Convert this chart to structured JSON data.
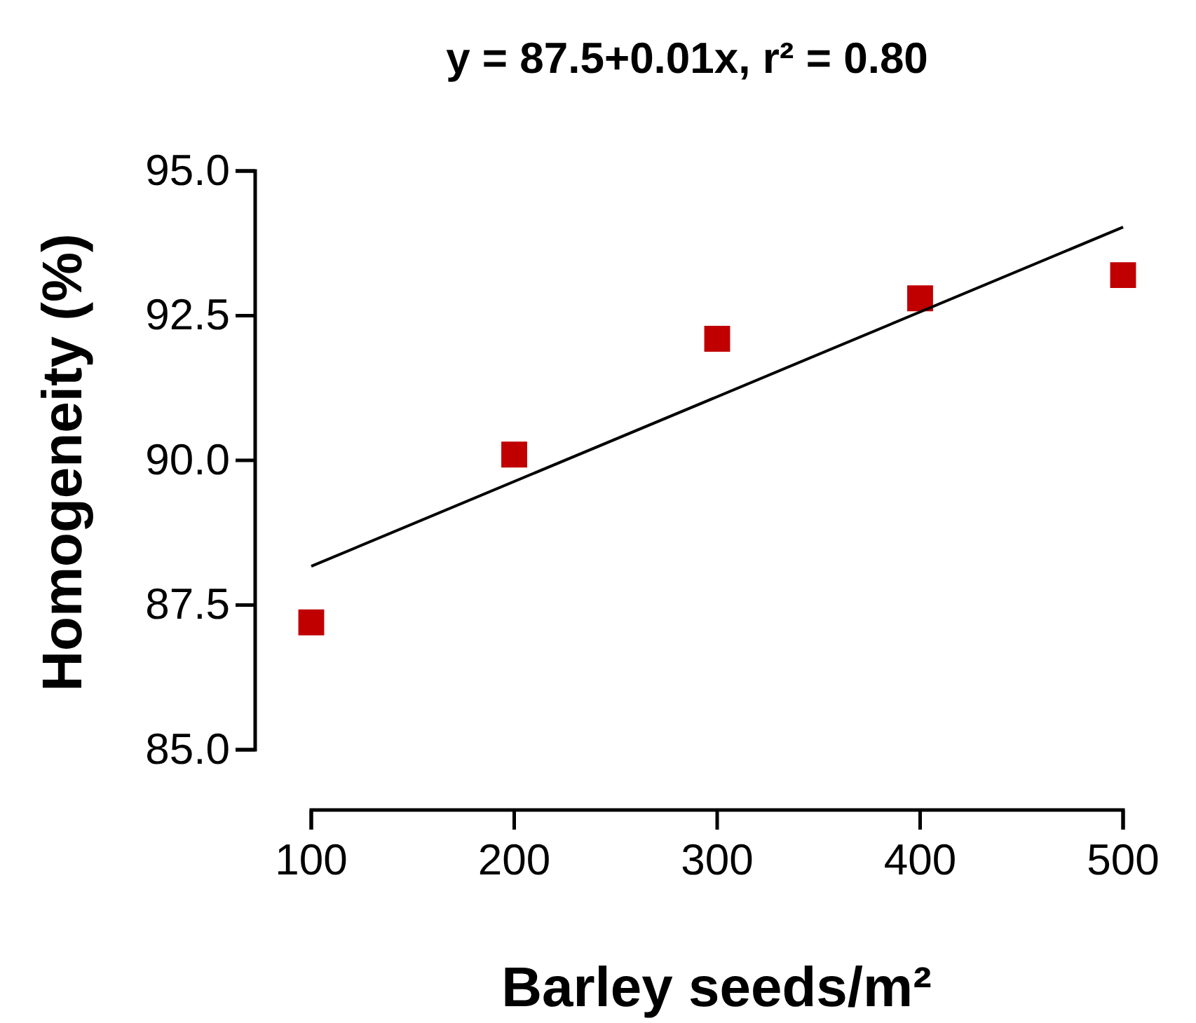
{
  "chart_data": {
    "type": "scatter",
    "title": "y = 87.5+0.01x, r² = 0.80",
    "xlabel": "Barley seeds/m²",
    "ylabel": "Homogeneity (%)",
    "x": [
      100,
      200,
      300,
      400,
      500
    ],
    "series": [
      {
        "color": "#c00000",
        "marker": "square",
        "values": [
          87.2,
          90.1,
          92.1,
          92.8,
          93.2
        ]
      },
      {
        "type": "line",
        "color": "#000000",
        "marker": "none",
        "x": [
          100,
          500
        ],
        "values": [
          88.17,
          94.03
        ]
      }
    ],
    "xlim": [
      100,
      500
    ],
    "xticks": [
      100,
      200,
      300,
      400,
      500
    ],
    "ylim": [
      85,
      95
    ],
    "yticks": [
      {
        "value": 85,
        "label": "85.0"
      },
      {
        "value": 87.5,
        "label": "87.5"
      },
      {
        "value": 90,
        "label": "90.0"
      },
      {
        "value": 92.5,
        "label": "92.5"
      },
      {
        "value": 95,
        "label": "95.0"
      }
    ],
    "grid": false
  }
}
